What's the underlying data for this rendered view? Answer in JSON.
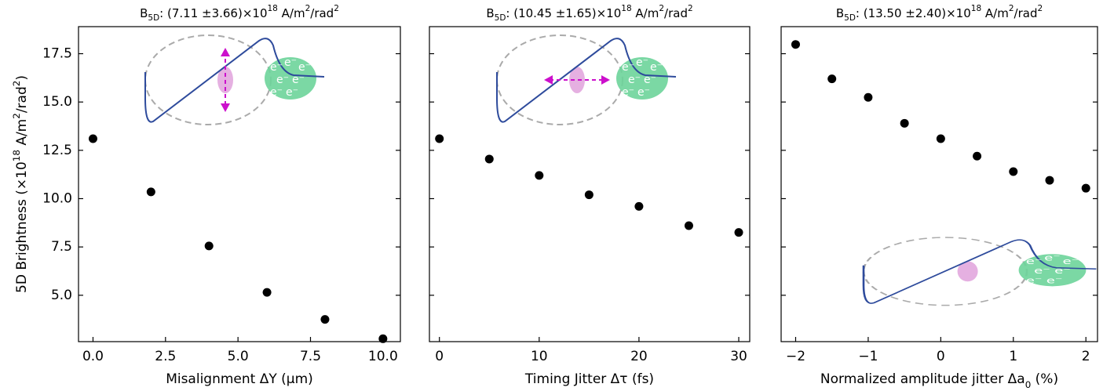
{
  "chart_data": [
    {
      "type": "scatter",
      "title": "B_{5D}: (7.11 ±3.66)×10^{18} A/m^{2}/rad^{2}",
      "xlabel": "Misalignment ΔY (μm)",
      "ylabel": "5D Brightness (×10^{18} A/m^{2}/rad^{2})",
      "x": [
        0,
        2,
        4,
        6,
        8,
        10
      ],
      "values": [
        13.1,
        10.35,
        7.55,
        5.15,
        3.75,
        2.75
      ],
      "color": "#000000",
      "xlim": [
        -0.5,
        10.6
      ],
      "xticks": [
        {
          "value": 0,
          "label": "0.0"
        },
        {
          "value": 2.5,
          "label": "2.5"
        },
        {
          "value": 5,
          "label": "5.0"
        },
        {
          "value": 7.5,
          "label": "7.5"
        },
        {
          "value": 10,
          "label": "10.0"
        }
      ],
      "ylim": [
        2.6,
        18.9
      ],
      "yticks": [
        {
          "value": 5,
          "label": "5.0"
        },
        {
          "value": 7.5,
          "label": "7.5"
        },
        {
          "value": 10,
          "label": "10.0"
        },
        {
          "value": 12.5,
          "label": "12.5"
        },
        {
          "value": 15,
          "label": "15.0"
        },
        {
          "value": 17.5,
          "label": "17.5"
        }
      ]
    },
    {
      "type": "scatter",
      "title": "B_{5D}: (10.45 ±1.65)×10^{18} A/m^{2}/rad^{2}",
      "xlabel": "Timing Jitter Δτ (fs)",
      "x": [
        0,
        5,
        10,
        15,
        20,
        25,
        30
      ],
      "values": [
        13.1,
        12.05,
        11.2,
        10.2,
        9.6,
        8.6,
        8.25
      ],
      "color": "#000000",
      "xlim": [
        -1.0,
        31.1
      ],
      "xticks": [
        0,
        10,
        20,
        30
      ],
      "ylim": [
        2.6,
        18.9
      ],
      "yticks": [
        5,
        7.5,
        10,
        12.5,
        15,
        17.5
      ]
    },
    {
      "type": "scatter",
      "title": "B_{5D}: (13.50 ±2.40)×10^{18} A/m^{2}/rad^{2}",
      "xlabel": "Normalized amplitude jitter Δa_{0} (%)",
      "x": [
        -2,
        -1.5,
        -1,
        -0.5,
        0,
        0.5,
        1,
        1.5,
        2
      ],
      "values": [
        17.98,
        16.2,
        15.24,
        13.9,
        13.1,
        12.2,
        11.4,
        10.95,
        10.54
      ],
      "color": "#000000",
      "xlim": [
        -2.2,
        2.16
      ],
      "xticks": [
        {
          "value": -2,
          "label": "−2"
        },
        {
          "value": -1,
          "label": "−1"
        },
        0,
        1,
        2
      ],
      "ylim": [
        2.6,
        18.9
      ],
      "yticks": [
        5,
        7.5,
        10,
        12.5,
        15,
        17.5
      ]
    }
  ],
  "inset": {
    "electron_label": "e⁻"
  }
}
